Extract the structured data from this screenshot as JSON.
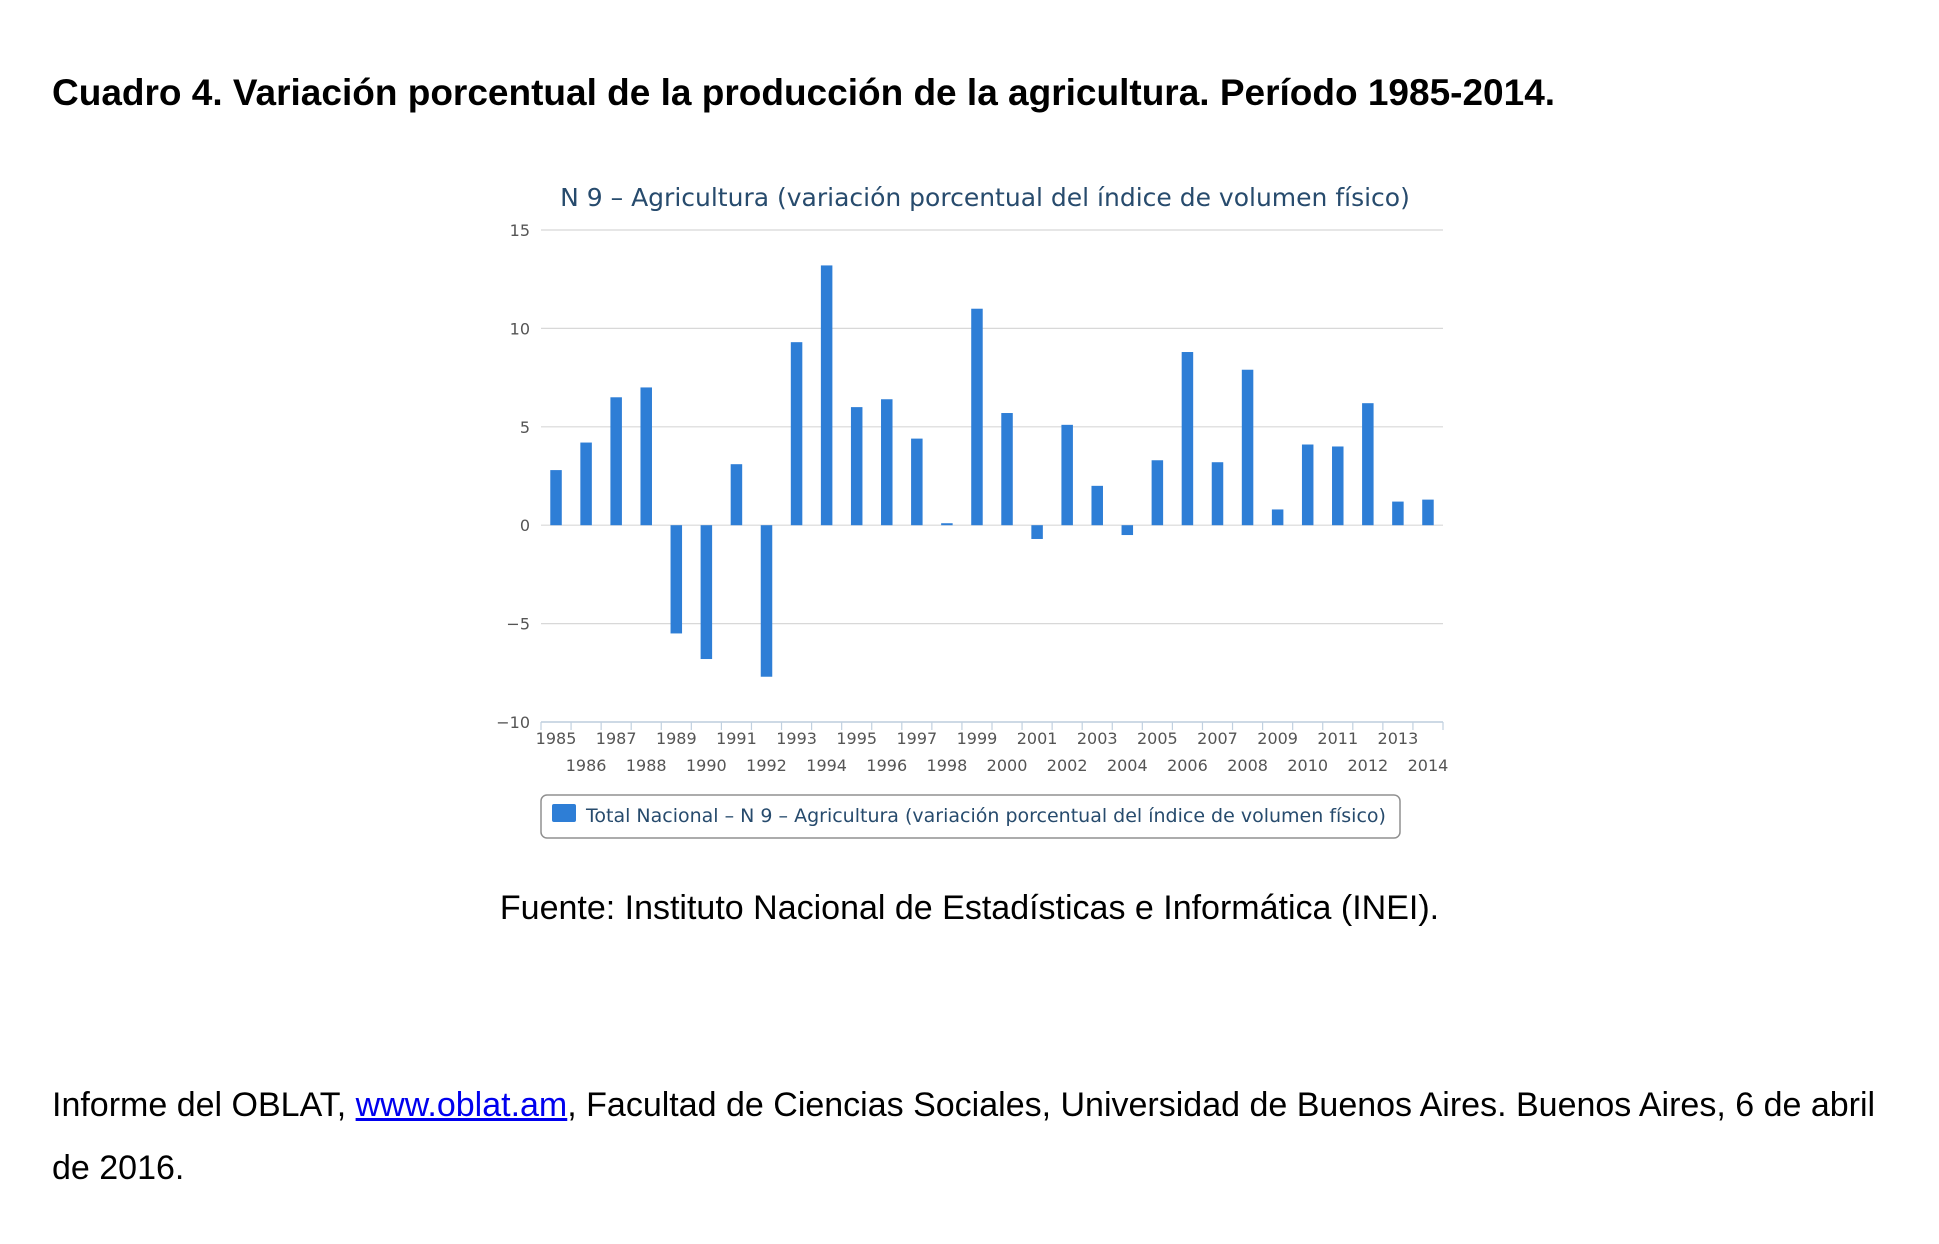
{
  "heading": "Cuadro 4. Variación porcentual de la producción de la agricultura. Período 1985-2014.",
  "source_note": "Fuente: Instituto Nacional de Estadísticas e Informática (INEI).",
  "footer": {
    "before_link": "Informe del OBLAT, ",
    "link_text": "www.oblat.am",
    "after_link": ", Facultad de Ciencias Sociales, Universidad de Buenos Aires. Buenos Aires, 6 de abril de 2016."
  },
  "colors": {
    "bar": "#2e7ed6",
    "title": "#274b6d",
    "grid": "#d8d8d8",
    "legend_border": "#909090"
  },
  "chart_data": {
    "type": "bar",
    "title": "N 9 – Agricultura (variación porcentual del índice de volumen físico)",
    "xlabel": "",
    "ylabel": "",
    "ylim": [
      -10,
      15
    ],
    "yticks": [
      15,
      10,
      5,
      0,
      -5,
      -10
    ],
    "ytick_labels": [
      "15",
      "10",
      "5",
      "0",
      "−5",
      "−10"
    ],
    "grid": true,
    "legend_position": "bottom-center",
    "categories": [
      "1985",
      "1986",
      "1987",
      "1988",
      "1989",
      "1990",
      "1991",
      "1992",
      "1993",
      "1994",
      "1995",
      "1996",
      "1997",
      "1998",
      "1999",
      "2000",
      "2001",
      "2002",
      "2003",
      "2004",
      "2005",
      "2006",
      "2007",
      "2008",
      "2009",
      "2010",
      "2011",
      "2012",
      "2013",
      "2014"
    ],
    "series": [
      {
        "name": "Total Nacional – N 9 – Agricultura (variación porcentual del índice de volumen físico)",
        "values": [
          2.8,
          4.2,
          6.5,
          7.0,
          -5.5,
          -6.8,
          3.1,
          -7.7,
          9.3,
          13.2,
          6.0,
          6.4,
          4.4,
          0.1,
          11.0,
          5.7,
          -0.7,
          5.1,
          2.0,
          -0.5,
          3.3,
          8.8,
          3.2,
          7.9,
          0.8,
          4.1,
          4.0,
          6.2,
          1.2,
          1.3
        ]
      }
    ]
  }
}
